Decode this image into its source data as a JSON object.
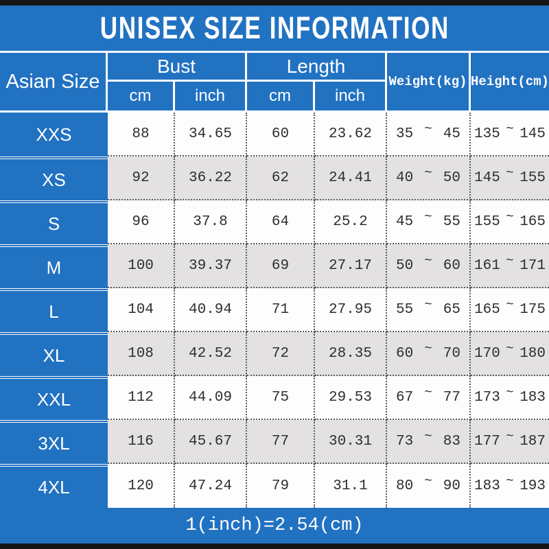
{
  "title": "UNISEX SIZE INFORMATION",
  "footer_note": "1(inch)=2.54(cm)",
  "colors": {
    "blue": "#2272c2",
    "row_white": "#fdfdfd",
    "row_gray": "#e3e1e2",
    "black_bar": "#161616",
    "text_dark": "#2e2e2e"
  },
  "table": {
    "tilde": "~",
    "headers": {
      "size": "Asian Size",
      "bust": "Bust",
      "length": "Length",
      "weight": "Weight(kg)",
      "height": "Height(cm)",
      "bust_cm": "cm",
      "bust_inch": "inch",
      "length_cm": "cm",
      "length_inch": "inch"
    },
    "rows": [
      {
        "size": "XXS",
        "bust_cm": "88",
        "bust_inch": "34.65",
        "length_cm": "60",
        "length_inch": "23.62",
        "weight_min": "35",
        "weight_max": "45",
        "height_min": "135",
        "height_max": "145"
      },
      {
        "size": "XS",
        "bust_cm": "92",
        "bust_inch": "36.22",
        "length_cm": "62",
        "length_inch": "24.41",
        "weight_min": "40",
        "weight_max": "50",
        "height_min": "145",
        "height_max": "155"
      },
      {
        "size": "S",
        "bust_cm": "96",
        "bust_inch": "37.8",
        "length_cm": "64",
        "length_inch": "25.2",
        "weight_min": "45",
        "weight_max": "55",
        "height_min": "155",
        "height_max": "165"
      },
      {
        "size": "M",
        "bust_cm": "100",
        "bust_inch": "39.37",
        "length_cm": "69",
        "length_inch": "27.17",
        "weight_min": "50",
        "weight_max": "60",
        "height_min": "161",
        "height_max": "171"
      },
      {
        "size": "L",
        "bust_cm": "104",
        "bust_inch": "40.94",
        "length_cm": "71",
        "length_inch": "27.95",
        "weight_min": "55",
        "weight_max": "65",
        "height_min": "165",
        "height_max": "175"
      },
      {
        "size": "XL",
        "bust_cm": "108",
        "bust_inch": "42.52",
        "length_cm": "72",
        "length_inch": "28.35",
        "weight_min": "60",
        "weight_max": "70",
        "height_min": "170",
        "height_max": "180"
      },
      {
        "size": "XXL",
        "bust_cm": "112",
        "bust_inch": "44.09",
        "length_cm": "75",
        "length_inch": "29.53",
        "weight_min": "67",
        "weight_max": "77",
        "height_min": "173",
        "height_max": "183"
      },
      {
        "size": "3XL",
        "bust_cm": "116",
        "bust_inch": "45.67",
        "length_cm": "77",
        "length_inch": "30.31",
        "weight_min": "73",
        "weight_max": "83",
        "height_min": "177",
        "height_max": "187"
      },
      {
        "size": "4XL",
        "bust_cm": "120",
        "bust_inch": "47.24",
        "length_cm": "79",
        "length_inch": "31.1",
        "weight_min": "80",
        "weight_max": "90",
        "height_min": "183",
        "height_max": "193"
      }
    ]
  }
}
